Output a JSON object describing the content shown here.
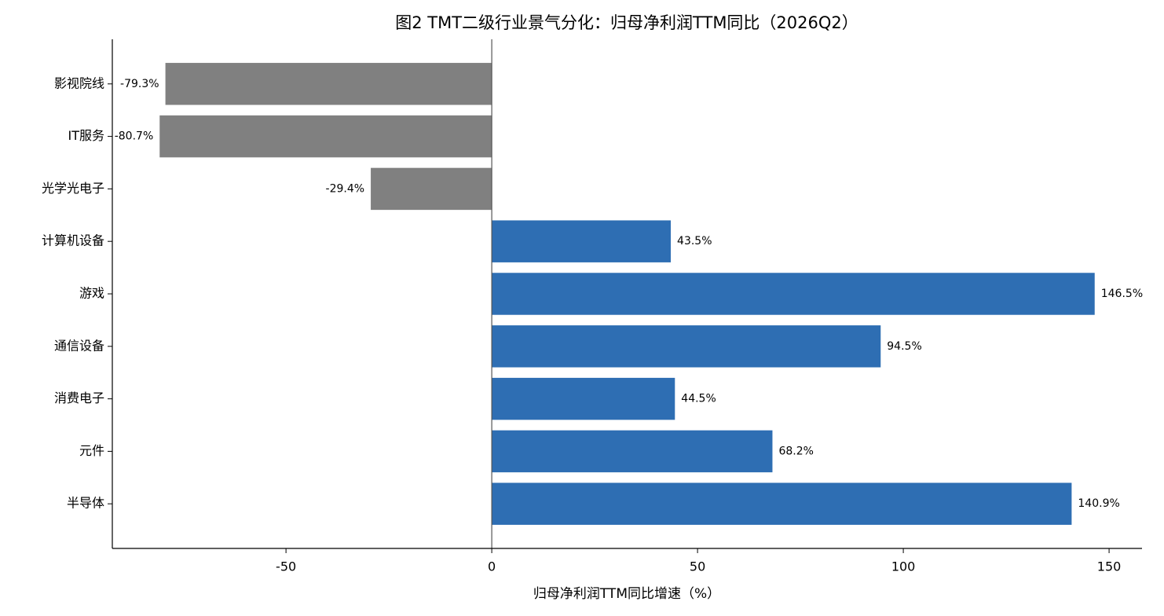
{
  "chart_data": {
    "type": "barh",
    "title": "图2  TMT二级行业景气分化：归母净利润TTM同比（2026Q2）",
    "xlabel": "归母净利润TTM同比增速（%）",
    "categories": [
      "影视院线",
      "IT服务",
      "光学光电子",
      "计算机设备",
      "游戏",
      "通信设备",
      "消费电子",
      "元件",
      "半导体"
    ],
    "values": [
      -79.3,
      -80.7,
      -29.4,
      43.5,
      146.5,
      94.5,
      44.5,
      68.2,
      140.9
    ],
    "value_labels": [
      "-79.3%",
      "-80.7%",
      "-29.4%",
      "43.5%",
      "146.5%",
      "94.5%",
      "44.5%",
      "68.2%",
      "140.9%"
    ],
    "colors": [
      "#808080",
      "#808080",
      "#808080",
      "#2e6eb3",
      "#2e6eb3",
      "#2e6eb3",
      "#2e6eb3",
      "#2e6eb3",
      "#2e6eb3"
    ],
    "xlim": [
      -92.2,
      158
    ],
    "xticks": [
      -50,
      0,
      50,
      100,
      150
    ],
    "grid": false
  }
}
